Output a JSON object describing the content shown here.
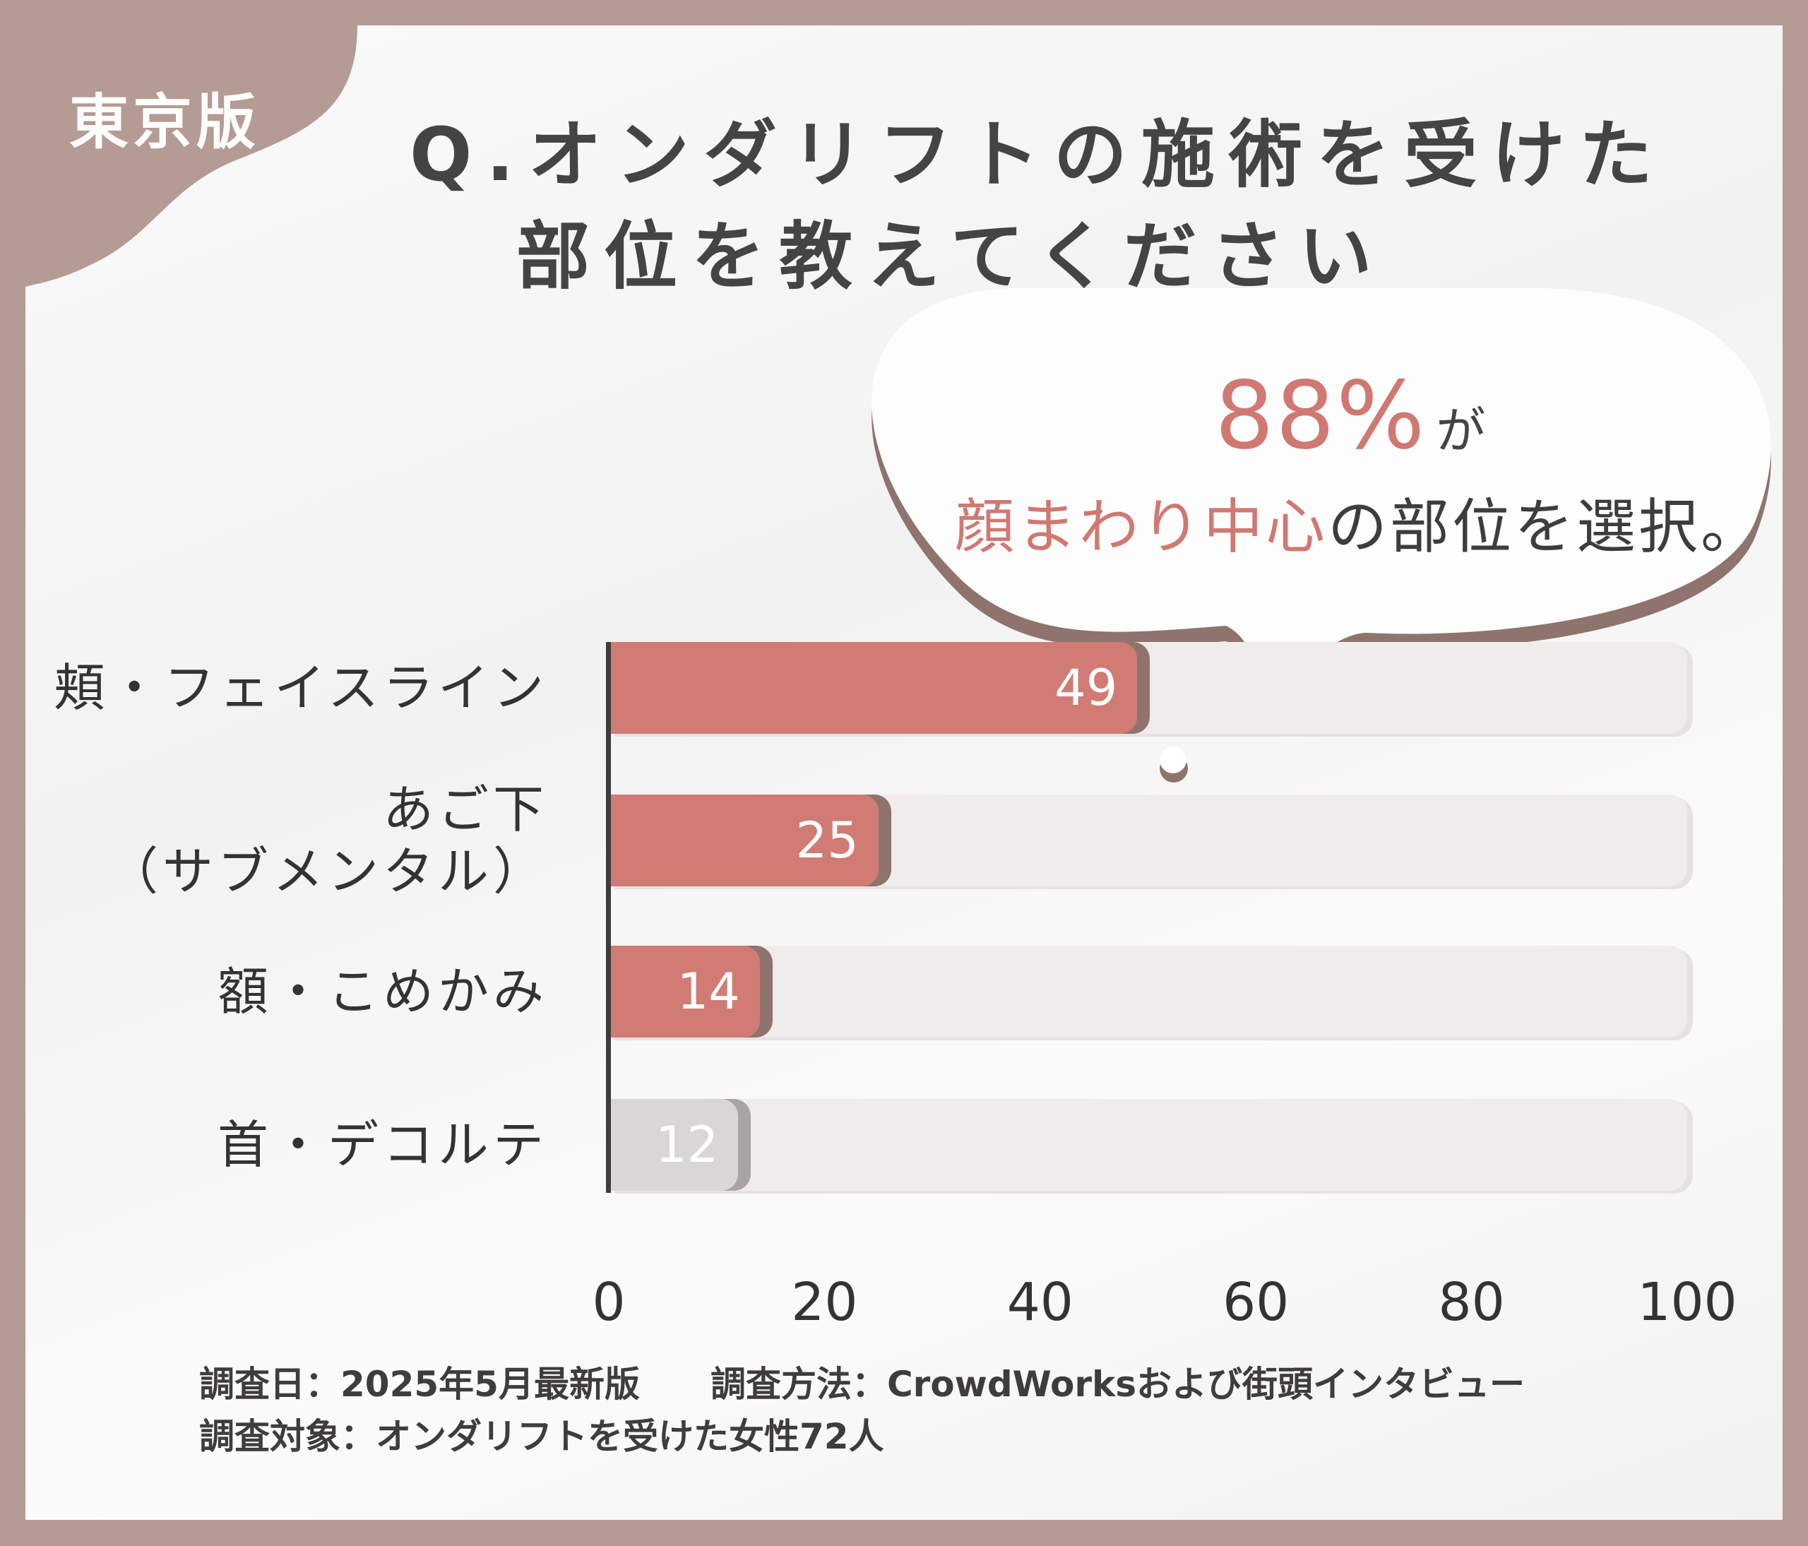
{
  "badge": "東京版",
  "title": {
    "line1": "Q.オンダリフトの施術を受けた",
    "line2": "部位を教えてください"
  },
  "callout": {
    "percent": "88%",
    "suffix": "が",
    "highlight": "顔まわり中心",
    "rest": "の部位を選択。"
  },
  "colors": {
    "border": "#b49b93",
    "bar": "#d17b75",
    "bar_shadow": "#8f736d",
    "bar_muted": "#d9d6d6",
    "bar_muted_shadow": "#aaa3a1",
    "track": "#efeceb",
    "accent_text": "#d07872"
  },
  "chart_data": {
    "type": "bar",
    "orientation": "horizontal",
    "categories": [
      "頬・フェイスライン",
      "あご下\n（サブメンタル）",
      "額・こめかみ",
      "首・デコルテ"
    ],
    "values": [
      49,
      25,
      14,
      12
    ],
    "xlim": [
      0,
      100
    ],
    "xticks": [
      "0",
      "20",
      "40",
      "60",
      "80",
      "100"
    ],
    "grid": false
  },
  "footer": {
    "line1": "調査日：2025年5月最新版　　調査方法：CrowdWorksおよび街頭インタビュー",
    "line2": "調査対象：オンダリフトを受けた女性72人"
  }
}
